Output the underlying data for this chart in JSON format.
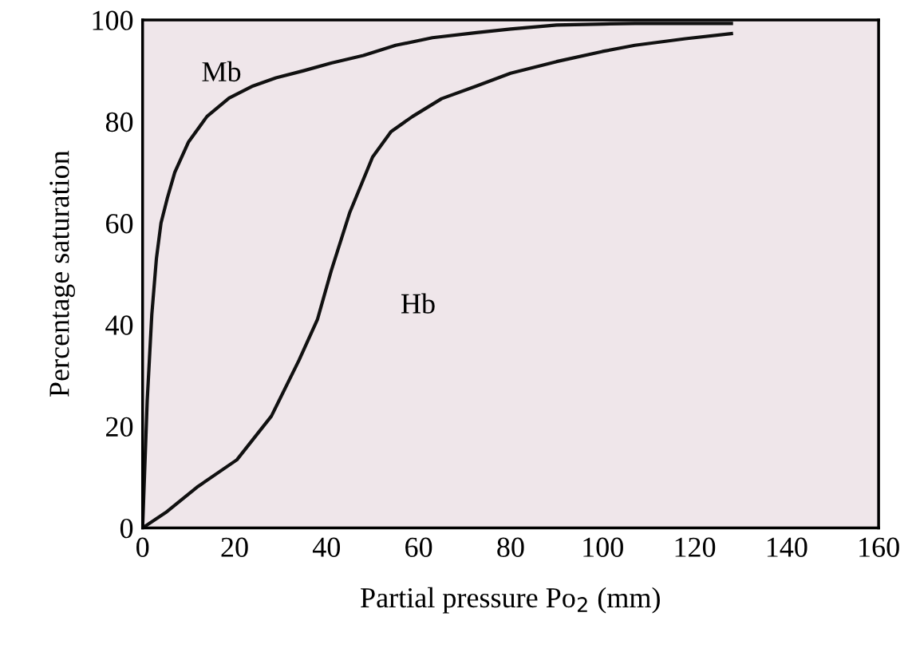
{
  "chart_data": {
    "type": "line",
    "xlabel": "Partial pressure Po$_{2}$ (mm)",
    "ylabel": "Percentage saturation",
    "xlim": [
      0,
      160
    ],
    "ylim": [
      0,
      100
    ],
    "xticks": [
      0,
      20,
      40,
      60,
      80,
      100,
      120,
      140,
      160
    ],
    "yticks": [
      0,
      20,
      40,
      60,
      80,
      100
    ],
    "grid": false,
    "legend": false,
    "marker": "none",
    "line_style": "solid",
    "series": [
      {
        "name": "Mb",
        "color": "#111111",
        "x": [
          0,
          1,
          2,
          3,
          4,
          5.4,
          7,
          10,
          14,
          18.8,
          24,
          29,
          35,
          41,
          48,
          55,
          63,
          72.6,
          80,
          90,
          100,
          107,
          118,
          128
        ],
        "values": [
          0,
          25,
          42,
          53,
          60,
          65,
          70,
          76,
          81,
          84.6,
          87,
          88.6,
          90,
          91.5,
          93,
          95,
          96.5,
          97.5,
          98.2,
          99,
          99.2,
          99.3,
          99.3,
          99.3
        ]
      },
      {
        "name": "Hb",
        "color": "#111111",
        "x": [
          0,
          5,
          11.8,
          20.5,
          28,
          34,
          38,
          41,
          45,
          50,
          54,
          58.7,
          65,
          72.6,
          80,
          90,
          100,
          107,
          118,
          128
        ],
        "values": [
          0,
          3,
          8,
          13.4,
          22,
          33,
          41,
          50.6,
          62,
          73,
          78,
          81,
          84.5,
          87,
          89.5,
          91.8,
          93.8,
          95,
          96.3,
          97.3
        ]
      }
    ]
  }
}
